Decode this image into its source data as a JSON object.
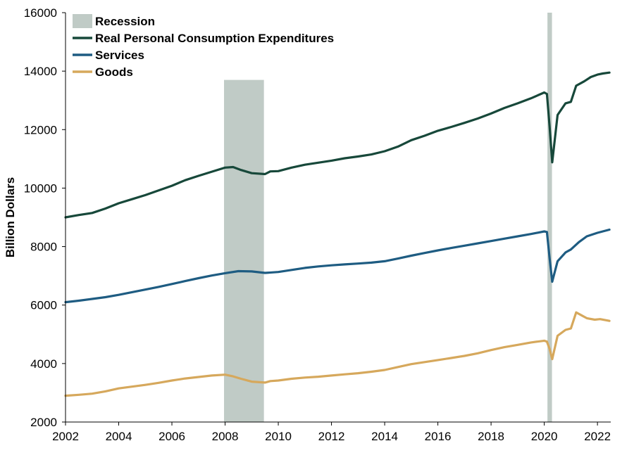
{
  "chart_data": {
    "type": "line",
    "title": "",
    "xlabel": "",
    "ylabel": "Billion Dollars",
    "xlim": [
      2002.0,
      2022.5
    ],
    "ylim": [
      2000,
      16000
    ],
    "x_ticks": [
      "2002",
      "2004",
      "2006",
      "2008",
      "2010",
      "2012",
      "2014",
      "2016",
      "2018",
      "2020",
      "2022"
    ],
    "y_ticks": [
      "2000",
      "4000",
      "6000",
      "8000",
      "10000",
      "12000",
      "14000",
      "16000"
    ],
    "grid": false,
    "legend_position": "top-left",
    "recessions": [
      {
        "start": 2007.96,
        "end": 2009.46,
        "top": 13700
      },
      {
        "start": 2020.12,
        "end": 2020.29,
        "top": 16000
      }
    ],
    "recession_label": "Recession",
    "recession_color": "#c0cbc6",
    "series": [
      {
        "name": "Real Personal Consumption Expenditures",
        "color": "#17483a",
        "points": [
          [
            2002.0,
            9000
          ],
          [
            2002.5,
            9080
          ],
          [
            2003.0,
            9150
          ],
          [
            2003.5,
            9300
          ],
          [
            2004.0,
            9480
          ],
          [
            2004.5,
            9620
          ],
          [
            2005.0,
            9760
          ],
          [
            2005.5,
            9920
          ],
          [
            2006.0,
            10080
          ],
          [
            2006.5,
            10270
          ],
          [
            2007.0,
            10420
          ],
          [
            2007.5,
            10560
          ],
          [
            2008.0,
            10700
          ],
          [
            2008.3,
            10720
          ],
          [
            2008.6,
            10620
          ],
          [
            2009.0,
            10510
          ],
          [
            2009.5,
            10480
          ],
          [
            2009.7,
            10570
          ],
          [
            2010.0,
            10580
          ],
          [
            2010.5,
            10700
          ],
          [
            2011.0,
            10800
          ],
          [
            2011.5,
            10870
          ],
          [
            2012.0,
            10940
          ],
          [
            2012.5,
            11020
          ],
          [
            2013.0,
            11080
          ],
          [
            2013.5,
            11150
          ],
          [
            2014.0,
            11260
          ],
          [
            2014.5,
            11420
          ],
          [
            2015.0,
            11640
          ],
          [
            2015.5,
            11790
          ],
          [
            2016.0,
            11960
          ],
          [
            2016.5,
            12090
          ],
          [
            2017.0,
            12230
          ],
          [
            2017.5,
            12380
          ],
          [
            2018.0,
            12550
          ],
          [
            2018.5,
            12740
          ],
          [
            2019.0,
            12900
          ],
          [
            2019.5,
            13070
          ],
          [
            2020.0,
            13270
          ],
          [
            2020.1,
            13220
          ],
          [
            2020.2,
            12100
          ],
          [
            2020.3,
            10880
          ],
          [
            2020.5,
            12500
          ],
          [
            2020.8,
            12900
          ],
          [
            2021.0,
            12950
          ],
          [
            2021.2,
            13500
          ],
          [
            2021.5,
            13650
          ],
          [
            2021.75,
            13800
          ],
          [
            2022.0,
            13880
          ],
          [
            2022.2,
            13920
          ],
          [
            2022.45,
            13950
          ]
        ]
      },
      {
        "name": "Services",
        "color": "#1e5c82",
        "points": [
          [
            2002.0,
            6100
          ],
          [
            2002.5,
            6150
          ],
          [
            2003.0,
            6210
          ],
          [
            2003.5,
            6270
          ],
          [
            2004.0,
            6350
          ],
          [
            2004.5,
            6440
          ],
          [
            2005.0,
            6530
          ],
          [
            2005.5,
            6620
          ],
          [
            2006.0,
            6720
          ],
          [
            2006.5,
            6820
          ],
          [
            2007.0,
            6920
          ],
          [
            2007.5,
            7010
          ],
          [
            2008.0,
            7090
          ],
          [
            2008.5,
            7160
          ],
          [
            2009.0,
            7150
          ],
          [
            2009.5,
            7100
          ],
          [
            2010.0,
            7130
          ],
          [
            2010.5,
            7200
          ],
          [
            2011.0,
            7270
          ],
          [
            2011.5,
            7320
          ],
          [
            2012.0,
            7360
          ],
          [
            2012.5,
            7390
          ],
          [
            2013.0,
            7420
          ],
          [
            2013.5,
            7450
          ],
          [
            2014.0,
            7500
          ],
          [
            2014.5,
            7590
          ],
          [
            2015.0,
            7690
          ],
          [
            2015.5,
            7780
          ],
          [
            2016.0,
            7870
          ],
          [
            2016.5,
            7950
          ],
          [
            2017.0,
            8030
          ],
          [
            2017.5,
            8110
          ],
          [
            2018.0,
            8190
          ],
          [
            2018.5,
            8270
          ],
          [
            2019.0,
            8350
          ],
          [
            2019.5,
            8430
          ],
          [
            2020.0,
            8520
          ],
          [
            2020.1,
            8500
          ],
          [
            2020.2,
            7600
          ],
          [
            2020.3,
            6800
          ],
          [
            2020.5,
            7500
          ],
          [
            2020.8,
            7800
          ],
          [
            2021.0,
            7900
          ],
          [
            2021.3,
            8150
          ],
          [
            2021.6,
            8350
          ],
          [
            2022.0,
            8470
          ],
          [
            2022.45,
            8580
          ]
        ]
      },
      {
        "name": "Goods",
        "color": "#d6a85c",
        "points": [
          [
            2002.0,
            2900
          ],
          [
            2002.5,
            2930
          ],
          [
            2003.0,
            2970
          ],
          [
            2003.5,
            3050
          ],
          [
            2004.0,
            3150
          ],
          [
            2004.5,
            3210
          ],
          [
            2005.0,
            3270
          ],
          [
            2005.5,
            3340
          ],
          [
            2006.0,
            3420
          ],
          [
            2006.5,
            3490
          ],
          [
            2007.0,
            3540
          ],
          [
            2007.5,
            3590
          ],
          [
            2008.0,
            3620
          ],
          [
            2008.3,
            3560
          ],
          [
            2008.6,
            3480
          ],
          [
            2009.0,
            3380
          ],
          [
            2009.5,
            3350
          ],
          [
            2009.7,
            3400
          ],
          [
            2010.0,
            3420
          ],
          [
            2010.5,
            3480
          ],
          [
            2011.0,
            3520
          ],
          [
            2011.5,
            3550
          ],
          [
            2012.0,
            3590
          ],
          [
            2012.5,
            3630
          ],
          [
            2013.0,
            3670
          ],
          [
            2013.5,
            3720
          ],
          [
            2014.0,
            3780
          ],
          [
            2014.5,
            3880
          ],
          [
            2015.0,
            3980
          ],
          [
            2015.5,
            4050
          ],
          [
            2016.0,
            4120
          ],
          [
            2016.5,
            4190
          ],
          [
            2017.0,
            4260
          ],
          [
            2017.5,
            4350
          ],
          [
            2018.0,
            4460
          ],
          [
            2018.5,
            4560
          ],
          [
            2019.0,
            4640
          ],
          [
            2019.5,
            4720
          ],
          [
            2020.0,
            4780
          ],
          [
            2020.1,
            4750
          ],
          [
            2020.2,
            4500
          ],
          [
            2020.3,
            4150
          ],
          [
            2020.5,
            4950
          ],
          [
            2020.8,
            5150
          ],
          [
            2021.0,
            5200
          ],
          [
            2021.2,
            5750
          ],
          [
            2021.4,
            5650
          ],
          [
            2021.6,
            5550
          ],
          [
            2021.9,
            5500
          ],
          [
            2022.1,
            5520
          ],
          [
            2022.45,
            5460
          ]
        ]
      }
    ]
  }
}
